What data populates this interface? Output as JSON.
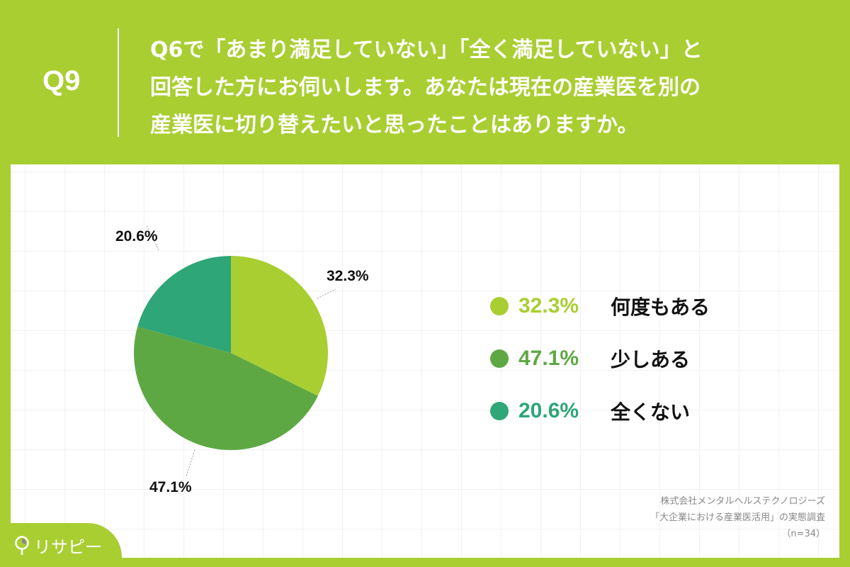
{
  "header": {
    "question_number": "Q9",
    "question_lines": [
      "Q6で「あまり満足していない」「全く満足していない」と",
      "回答した方にお伺いします。あなたは現在の産業医を別の",
      "産業医に切り替えたいと思ったことはありますか。"
    ]
  },
  "chart_data": {
    "type": "pie",
    "title": "Q6で「あまり満足していない」「全く満足していない」と回答した方にお伺いします。あなたは現在の産業医を別の産業医に切り替えたいと思ったことはありますか。",
    "categories": [
      "何度もある",
      "少しある",
      "全くない"
    ],
    "values": [
      32.3,
      47.1,
      20.6
    ],
    "unit": "%",
    "colors": [
      "#a9ce32",
      "#5ea844",
      "#2ea677"
    ],
    "data_labels": [
      "32.3%",
      "47.1%",
      "20.6%"
    ],
    "legend_position": "right",
    "start_angle": "12 o'clock, clockwise",
    "n": 34
  },
  "legend": [
    {
      "pct": "32.3%",
      "label": "何度もある",
      "color": "#a9ce32"
    },
    {
      "pct": "47.1%",
      "label": "少しある",
      "color": "#5ea844"
    },
    {
      "pct": "20.6%",
      "label": "全くない",
      "color": "#2ea677"
    }
  ],
  "source": {
    "company": "株式会社メンタルヘルステクノロジーズ",
    "survey": "「大企業における産業医活用」の実態調査",
    "n": "（n=34）"
  },
  "brand": {
    "name": "リサピー"
  }
}
